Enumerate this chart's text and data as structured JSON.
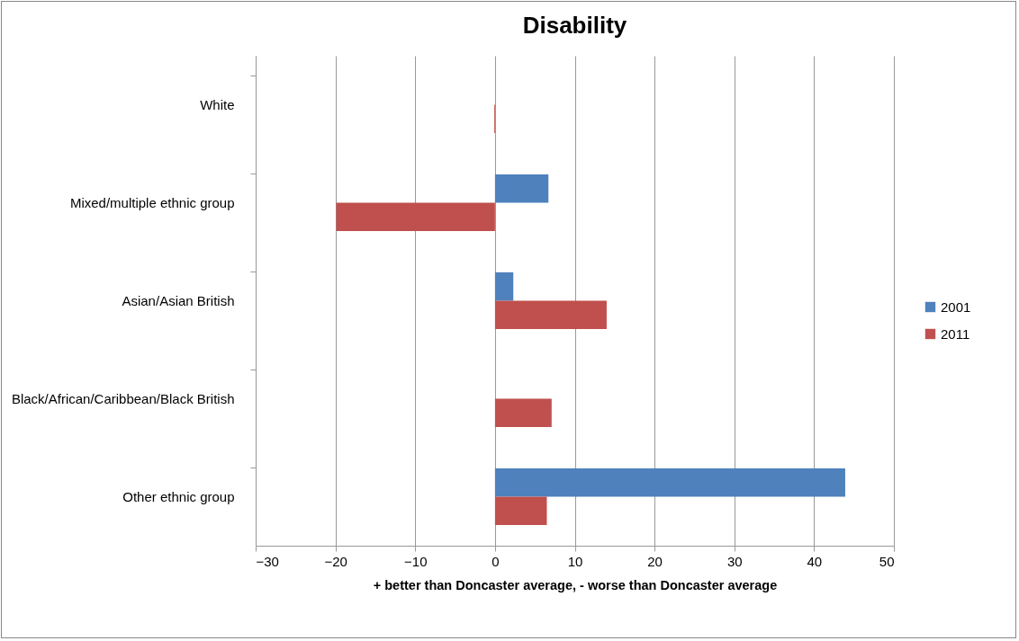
{
  "chart_data": {
    "type": "bar",
    "orientation": "horizontal",
    "title": "Disability",
    "xlabel": "+ better than Doncaster average, - worse than Doncaster average",
    "categories": [
      "White",
      "Mixed/multiple ethnic group",
      "Asian/Asian British",
      "Black/African/Caribbean/Black British",
      "Other ethnic group"
    ],
    "series": [
      {
        "name": "2001",
        "color": "#4f81bd",
        "values": [
          null,
          6.7,
          2.3,
          null,
          43.9
        ]
      },
      {
        "name": "2011",
        "color": "#c0504d",
        "values": [
          -0.1,
          -19.9,
          14.0,
          7.1,
          6.5
        ]
      }
    ],
    "xlim": [
      -30,
      50
    ],
    "xticks": [
      -30,
      -20,
      -10,
      0,
      10,
      20,
      30,
      40,
      50
    ],
    "grid": "x",
    "legend": "right"
  }
}
